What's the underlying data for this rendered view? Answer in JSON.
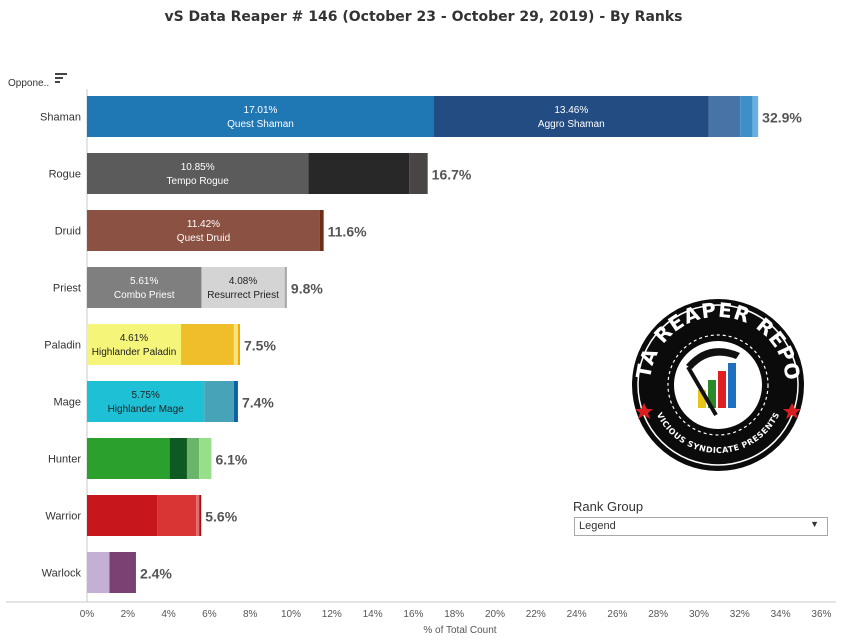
{
  "title": "vS Data Reaper #  146 (October 23 - October 29, 2019) - By Ranks",
  "row_header": "Oppone..",
  "filter": {
    "title": "Rank Group",
    "value": "Legend"
  },
  "logo": {
    "main": "DATA REAPER REPORT",
    "sub": "VICIOUS SYNDICATE PRESENTS"
  },
  "chart_data": {
    "type": "bar",
    "orientation": "horizontal",
    "stacked": true,
    "xlabel": "% of Total Count",
    "xlim": [
      0,
      36
    ],
    "xticks": [
      "0%",
      "2%",
      "4%",
      "6%",
      "8%",
      "10%",
      "12%",
      "14%",
      "16%",
      "18%",
      "20%",
      "22%",
      "24%",
      "26%",
      "28%",
      "30%",
      "32%",
      "34%",
      "36%"
    ],
    "categories": [
      "Shaman",
      "Rogue",
      "Druid",
      "Priest",
      "Paladin",
      "Mage",
      "Hunter",
      "Warrior",
      "Warlock"
    ],
    "totals": [
      "32.9%",
      "16.7%",
      "11.6%",
      "9.8%",
      "7.5%",
      "7.4%",
      "6.1%",
      "5.6%",
      "2.4%"
    ],
    "rows": [
      {
        "segments": [
          {
            "v": 17.01,
            "c": "#1f77b4",
            "pct": "17.01%",
            "name": "Quest Shaman",
            "tc": "#ffffff"
          },
          {
            "v": 13.46,
            "c": "#234c82",
            "pct": "13.46%",
            "name": "Aggro Shaman",
            "tc": "#ffffff"
          },
          {
            "v": 1.55,
            "c": "#4873a6"
          },
          {
            "v": 0.6,
            "c": "#3d8fc9"
          },
          {
            "v": 0.28,
            "c": "#6aaee0"
          }
        ]
      },
      {
        "segments": [
          {
            "v": 10.85,
            "c": "#5b5b5b",
            "pct": "10.85%",
            "name": "Tempo Rogue",
            "tc": "#ffffff"
          },
          {
            "v": 4.95,
            "c": "#282828"
          },
          {
            "v": 0.9,
            "c": "#4a4545"
          }
        ]
      },
      {
        "segments": [
          {
            "v": 11.42,
            "c": "#8b5244",
            "pct": "11.42%",
            "name": "Quest Druid",
            "tc": "#ffffff"
          },
          {
            "v": 0.18,
            "c": "#6e2d15"
          }
        ]
      },
      {
        "segments": [
          {
            "v": 5.61,
            "c": "#7f7f7f",
            "pct": "5.61%",
            "name": "Combo Priest",
            "tc": "#ffffff"
          },
          {
            "v": 4.08,
            "c": "#d4d4d4",
            "pct": "4.08%",
            "name": "Resurrect Priest",
            "tc": "#222222"
          },
          {
            "v": 0.11,
            "c": "#aaaaaa"
          }
        ]
      },
      {
        "segments": [
          {
            "v": 4.61,
            "c": "#f5f57a",
            "pct": "4.61%",
            "name": "Highlander Paladin",
            "tc": "#222222"
          },
          {
            "v": 2.59,
            "c": "#f0be2a"
          },
          {
            "v": 0.2,
            "c": "#f7e380"
          },
          {
            "v": 0.1,
            "c": "#f5a800"
          }
        ]
      },
      {
        "segments": [
          {
            "v": 5.75,
            "c": "#1ec0d6",
            "pct": "5.75%",
            "name": "Highlander Mage",
            "tc": "#222222"
          },
          {
            "v": 1.45,
            "c": "#47a3b8"
          },
          {
            "v": 0.2,
            "c": "#1060a8"
          }
        ]
      },
      {
        "segments": [
          {
            "v": 4.05,
            "c": "#2ca02c"
          },
          {
            "v": 0.85,
            "c": "#0f5a24"
          },
          {
            "v": 0.6,
            "c": "#6bb56a"
          },
          {
            "v": 0.6,
            "c": "#98df8a"
          }
        ]
      },
      {
        "segments": [
          {
            "v": 3.45,
            "c": "#c8161d"
          },
          {
            "v": 1.9,
            "c": "#d93534"
          },
          {
            "v": 0.15,
            "c": "#e06a6a"
          },
          {
            "v": 0.1,
            "c": "#a50f15"
          }
        ]
      },
      {
        "segments": [
          {
            "v": 1.1,
            "c": "#c5b0d5"
          },
          {
            "v": 1.3,
            "c": "#7b4173"
          }
        ]
      }
    ]
  }
}
